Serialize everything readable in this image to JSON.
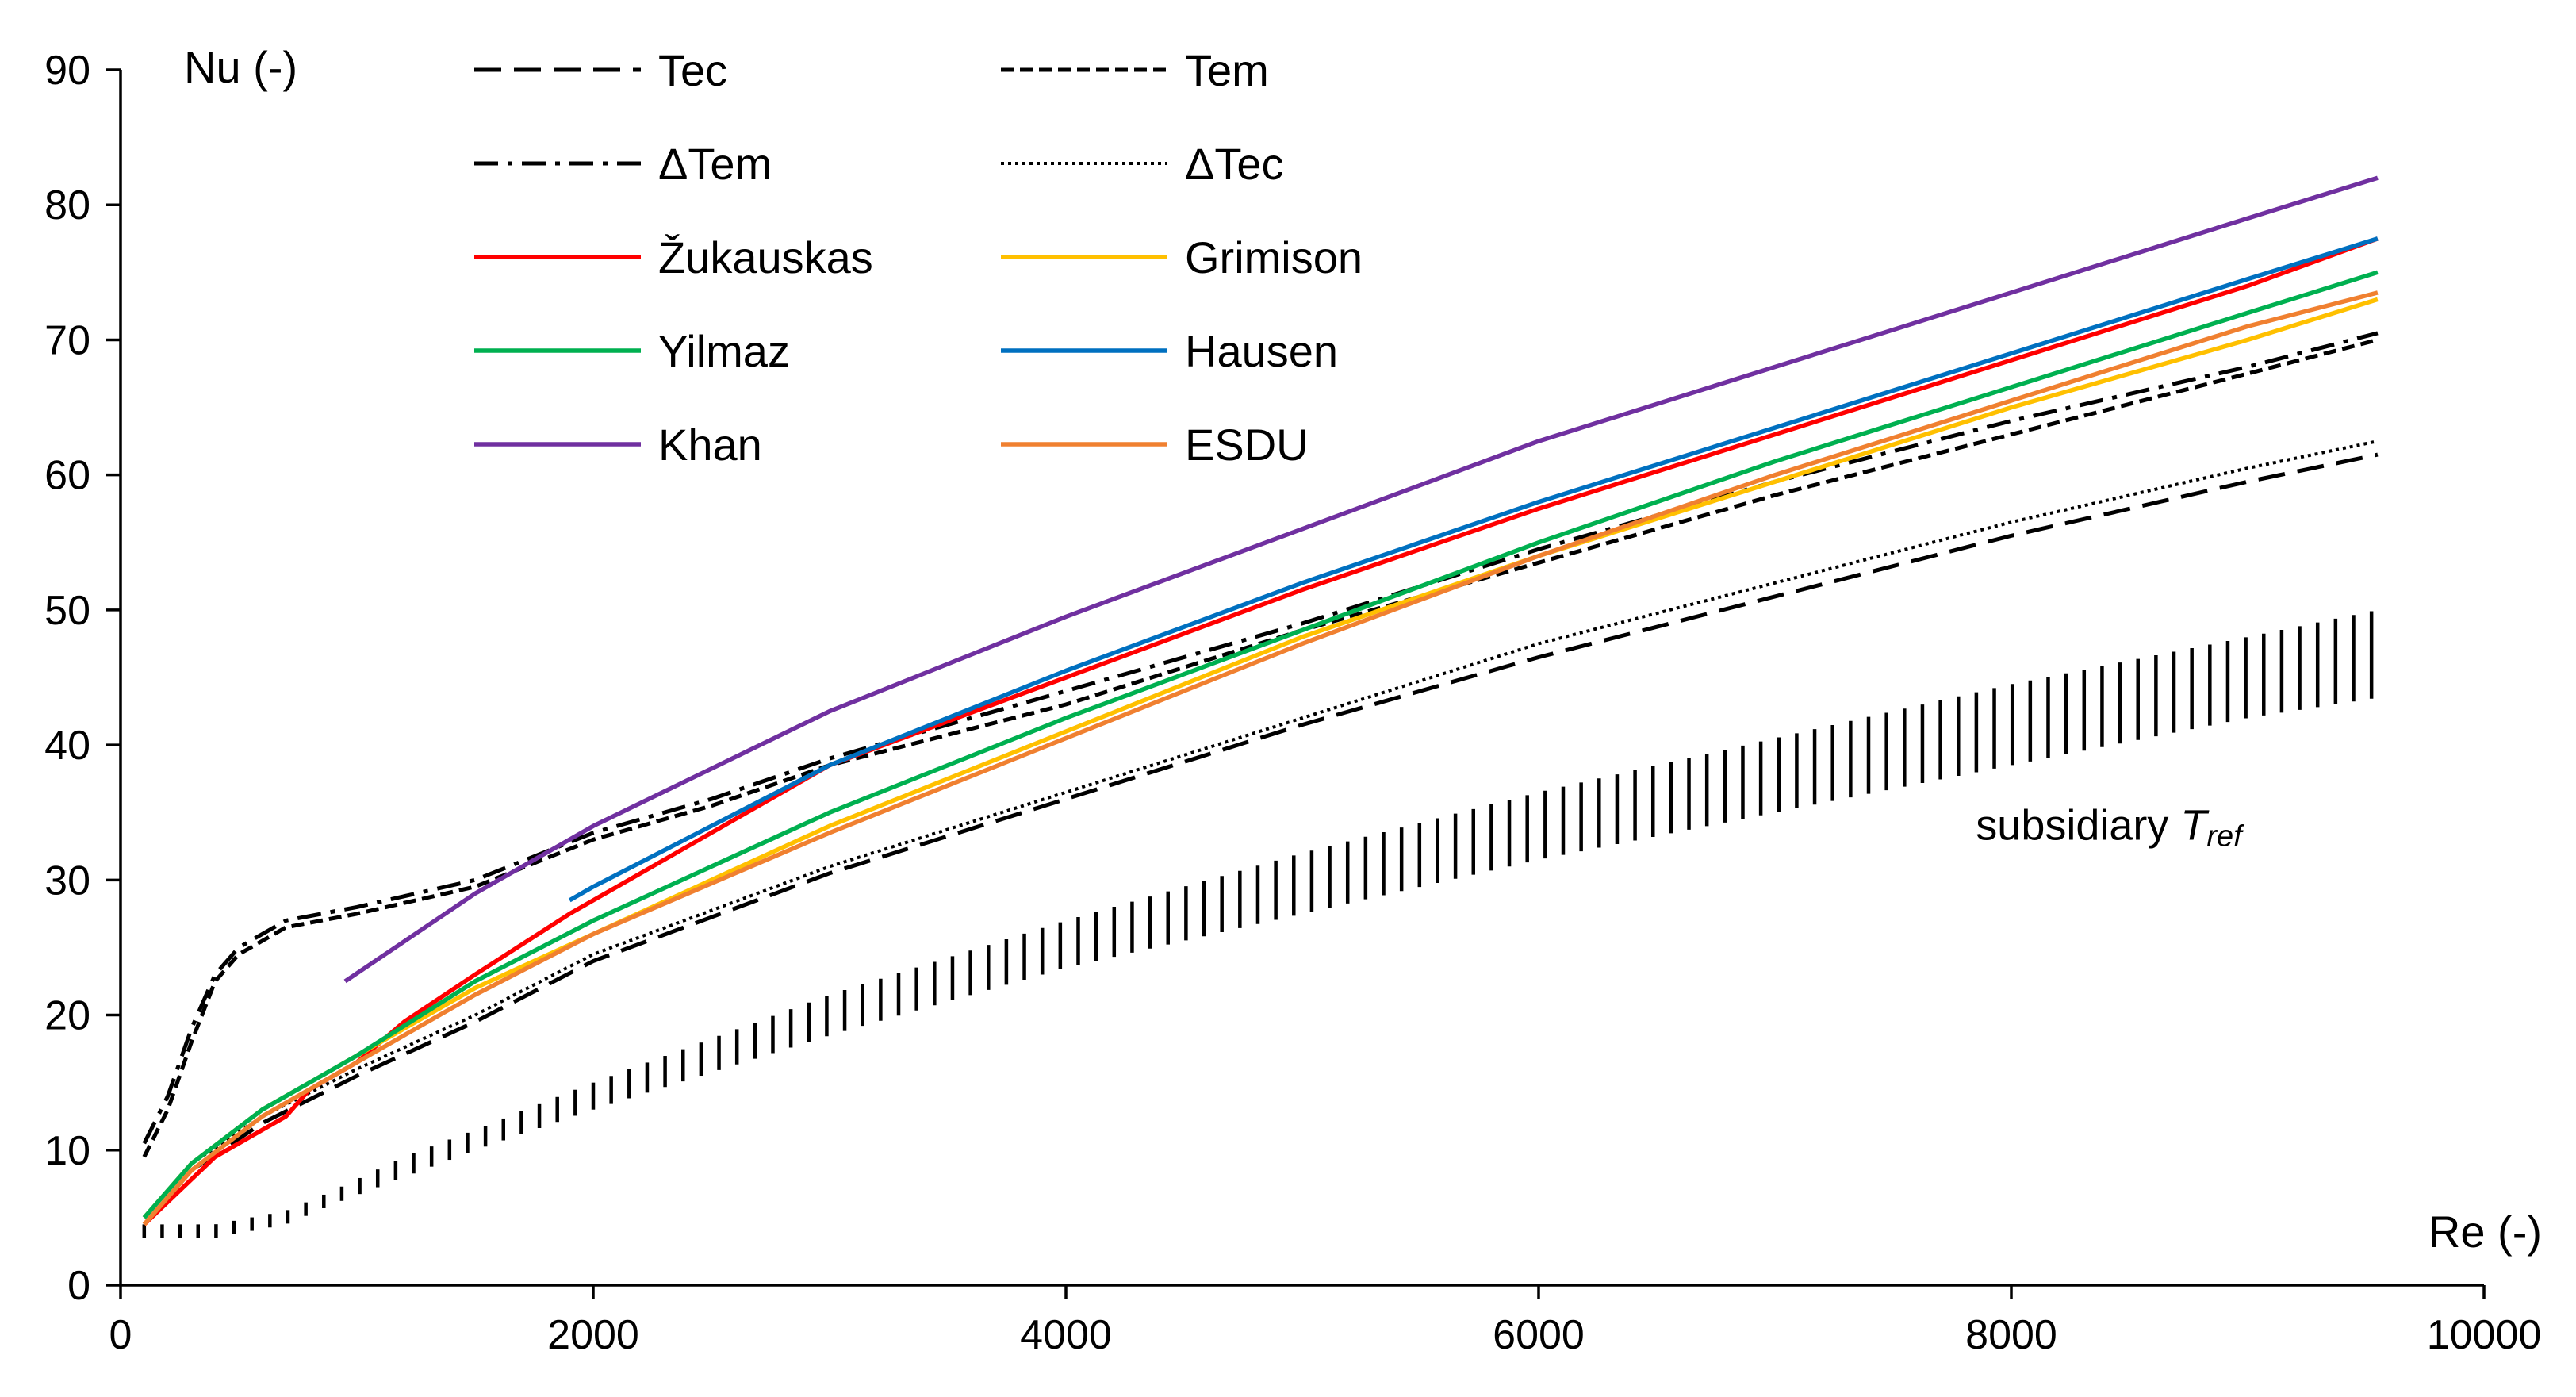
{
  "chart_data": {
    "type": "line",
    "title": "",
    "xlabel": "Re (-)",
    "ylabel": "Nu (-)",
    "xlim": [
      0,
      10000
    ],
    "ylim": [
      0,
      90
    ],
    "xticks": [
      0,
      2000,
      4000,
      6000,
      8000,
      10000
    ],
    "yticks": [
      0,
      10,
      20,
      30,
      40,
      50,
      60,
      70,
      80,
      90
    ],
    "grid": false,
    "legend_position": "top-left",
    "series": [
      {
        "name": "Tec",
        "color": "#000000",
        "dash": "long-dash",
        "x": [
          100,
          300,
          600,
          1000,
          1500,
          2000,
          3000,
          4000,
          5000,
          6000,
          7000,
          8000,
          9000,
          9550
        ],
        "y": [
          4.5,
          8.5,
          12,
          15.5,
          19.5,
          24,
          30.5,
          36,
          41.5,
          46.5,
          51,
          55.5,
          59.5,
          61.5
        ]
      },
      {
        "name": "Tem",
        "color": "#000000",
        "dash": "short-dash",
        "x": [
          100,
          200,
          300,
          400,
          500,
          700,
          1000,
          1500,
          2000,
          2500,
          3000,
          4000,
          5000,
          6000,
          7000,
          8000,
          9000,
          9550
        ],
        "y": [
          9.5,
          13,
          18,
          22.5,
          24.5,
          26.5,
          27.5,
          29.5,
          33,
          35.5,
          38.5,
          43,
          48.5,
          53.5,
          58.5,
          63,
          67.5,
          70
        ]
      },
      {
        "name": "ΔTem",
        "color": "#000000",
        "dash": "dash-dot",
        "x": [
          100,
          200,
          300,
          400,
          500,
          700,
          1000,
          1500,
          2000,
          2500,
          3000,
          4000,
          5000,
          6000,
          7000,
          8000,
          9000,
          9550
        ],
        "y": [
          10.5,
          14,
          19,
          23,
          25,
          27,
          28,
          30,
          33.5,
          36,
          39,
          44,
          49,
          54.5,
          59.5,
          64,
          68,
          70.5
        ]
      },
      {
        "name": "ΔTec",
        "color": "#000000",
        "dash": "dotted",
        "x": [
          100,
          300,
          600,
          1000,
          1500,
          2000,
          3000,
          4000,
          5000,
          6000,
          7000,
          8000,
          9000,
          9550
        ],
        "y": [
          5,
          9,
          12.5,
          16,
          20,
          24.5,
          31,
          36.5,
          42,
          47.5,
          52,
          56.5,
          60.5,
          62.5
        ]
      },
      {
        "name": "Žukauskas",
        "color": "#FF0000",
        "dash": "solid",
        "x": [
          100,
          400,
          700,
          800,
          1000,
          1200,
          1500,
          1900,
          2000,
          3000,
          4000,
          5000,
          6000,
          7000,
          8000,
          9000,
          9550
        ],
        "y": [
          4.5,
          9.5,
          12.5,
          14.5,
          16.5,
          19.5,
          23,
          27.5,
          28.5,
          38.5,
          45,
          51.5,
          57.5,
          63,
          68.5,
          74,
          77.5
        ]
      },
      {
        "name": "Grimison",
        "color": "#FFC000",
        "dash": "solid",
        "x": [
          100,
          300,
          600,
          1000,
          1500,
          2000,
          3000,
          4000,
          5000,
          6000,
          7000,
          8000,
          9000,
          9550
        ],
        "y": [
          5,
          9,
          13,
          17,
          22,
          26,
          34,
          41,
          48,
          54,
          59.5,
          65,
          70,
          73
        ]
      },
      {
        "name": "Yilmaz",
        "color": "#00B050",
        "dash": "solid",
        "x": [
          100,
          300,
          600,
          1000,
          1500,
          2000,
          3000,
          4000,
          5000,
          6000,
          7000,
          8000,
          9000,
          9550
        ],
        "y": [
          5,
          9,
          13,
          17,
          22.5,
          27,
          35,
          42,
          48.5,
          55,
          61,
          66.5,
          72,
          75
        ]
      },
      {
        "name": "Hausen",
        "color": "#0070C0",
        "dash": "solid",
        "x": [
          1900,
          2000,
          3000,
          4000,
          5000,
          6000,
          7000,
          8000,
          9000,
          9550
        ],
        "y": [
          28.5,
          29.5,
          38.5,
          45.5,
          52,
          58,
          63.5,
          69,
          74.5,
          77.5
        ]
      },
      {
        "name": "Khan",
        "color": "#7030A0",
        "dash": "solid",
        "x": [
          950,
          1500,
          2000,
          3000,
          4000,
          5000,
          6000,
          7000,
          8000,
          9000,
          9550
        ],
        "y": [
          22.5,
          29,
          34,
          42.5,
          49.5,
          56,
          62.5,
          68,
          73.5,
          79,
          82
        ]
      },
      {
        "name": "ESDU",
        "color": "#F08030",
        "dash": "solid",
        "x": [
          100,
          300,
          600,
          1000,
          1500,
          2000,
          3000,
          4000,
          5000,
          6000,
          7000,
          8000,
          9000,
          9550
        ],
        "y": [
          4.5,
          8.5,
          12.5,
          16.5,
          21.5,
          26,
          33.5,
          40.5,
          47.5,
          54,
          60,
          65.5,
          71,
          73.5
        ]
      }
    ],
    "band": {
      "name": "subsidiary T_ref",
      "x": [
        100,
        400,
        700,
        900,
        1200,
        1500,
        2000,
        3000,
        4000,
        5000,
        6000,
        7000,
        8000,
        9000,
        9550
      ],
      "lower": [
        3.5,
        3.5,
        4.5,
        6,
        8,
        10,
        13,
        18.5,
        23.5,
        27.5,
        31.5,
        35,
        38.5,
        42,
        43.5
      ],
      "upper": [
        4.5,
        4.5,
        5.5,
        7,
        9.5,
        11.5,
        15,
        21.5,
        27,
        32,
        36.5,
        40.5,
        44.5,
        48,
        50
      ]
    },
    "annotation": {
      "text_main": "subsidiary ",
      "text_italic": "T",
      "text_sub": "ref",
      "x": 7850,
      "y": 33
    }
  }
}
